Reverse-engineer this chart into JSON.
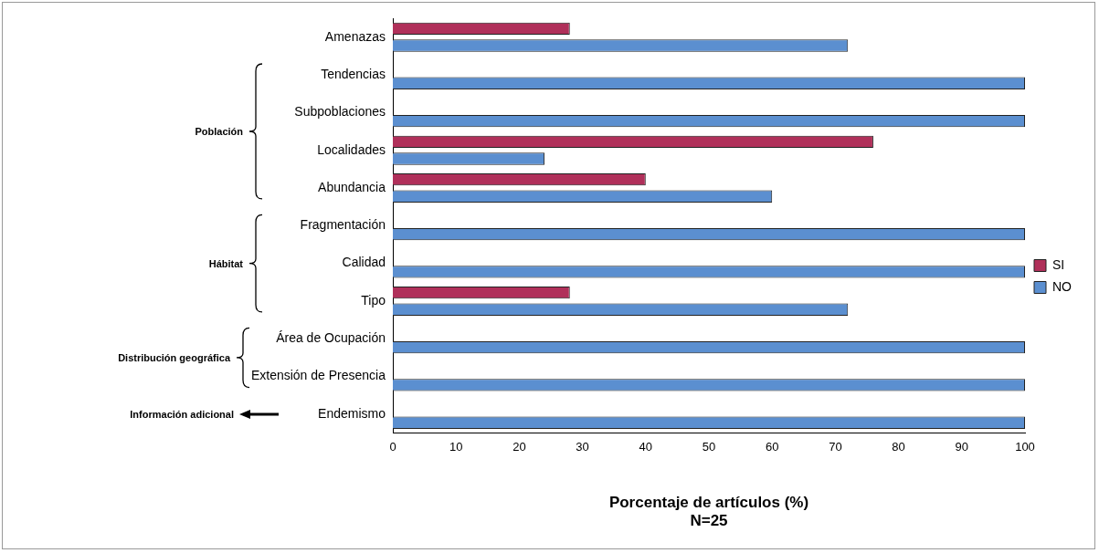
{
  "chart_data": {
    "type": "bar",
    "orientation": "horizontal",
    "categories": [
      "Amenazas",
      "Tendencias",
      "Subpoblaciones",
      "Localidades",
      "Abundancia",
      "Fragmentación",
      "Calidad",
      "Tipo",
      "Área de Ocupación",
      "Extensión de Presencia",
      "Endemismo"
    ],
    "series": [
      {
        "name": "SI",
        "color": "#b0305a",
        "values": [
          28,
          0,
          0,
          76,
          40,
          0,
          0,
          28,
          0,
          0,
          0
        ]
      },
      {
        "name": "NO",
        "color": "#5b8fd0",
        "values": [
          72,
          100,
          100,
          24,
          60,
          100,
          100,
          72,
          100,
          100,
          100
        ]
      }
    ],
    "xlim": [
      0,
      100
    ],
    "xticks": [
      0,
      10,
      20,
      30,
      40,
      50,
      60,
      70,
      80,
      90,
      100
    ],
    "xlabel": "Porcentaje de artículos (%)\nN=25",
    "grid": false,
    "legend": "right",
    "annotations": [
      "Población",
      "Hábitat",
      "Distribución geográfica",
      "Información adicional"
    ]
  }
}
